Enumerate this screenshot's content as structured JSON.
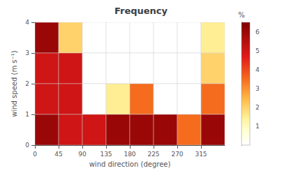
{
  "chart_data": {
    "type": "heatmap",
    "title": "Frequency",
    "xlabel": "wind direction (degree)",
    "ylabel": "wind speed (m s⁻¹)",
    "x_bins": [
      0,
      45,
      90,
      135,
      180,
      225,
      270,
      315,
      360
    ],
    "y_bins": [
      0,
      1,
      2,
      3,
      4
    ],
    "values_topdown": [
      [
        6.0,
        2.0,
        0.0,
        0.0,
        0.0,
        0.0,
        0.0,
        1.5
      ],
      [
        5.0,
        5.0,
        0.0,
        0.0,
        0.0,
        0.0,
        0.0,
        2.0
      ],
      [
        5.0,
        5.0,
        0.0,
        1.5,
        3.5,
        0.0,
        0.0,
        3.5
      ],
      [
        6.0,
        5.0,
        5.0,
        6.0,
        6.0,
        6.0,
        3.5,
        6.0
      ]
    ],
    "xlim": [
      0,
      360
    ],
    "ylim": [
      0,
      4
    ],
    "xticks": [
      0,
      45,
      90,
      135,
      180,
      225,
      270,
      315
    ],
    "yticks": [
      0,
      1,
      2,
      3,
      4
    ],
    "colorbar_label": "%",
    "colorbar_range": [
      0,
      6.5
    ],
    "colorbar_ticks": [
      1,
      2,
      3,
      4,
      5,
      6
    ],
    "colormap": [
      {
        "stop": 0.0,
        "color": "#ffffff"
      },
      {
        "stop": 0.12,
        "color": "#ffffd1"
      },
      {
        "stop": 0.22,
        "color": "#fff299"
      },
      {
        "stop": 0.38,
        "color": "#ffb847"
      },
      {
        "stop": 0.54,
        "color": "#f56b1f"
      },
      {
        "stop": 0.72,
        "color": "#e01a1a"
      },
      {
        "stop": 1.0,
        "color": "#800000"
      }
    ],
    "grid": false
  }
}
